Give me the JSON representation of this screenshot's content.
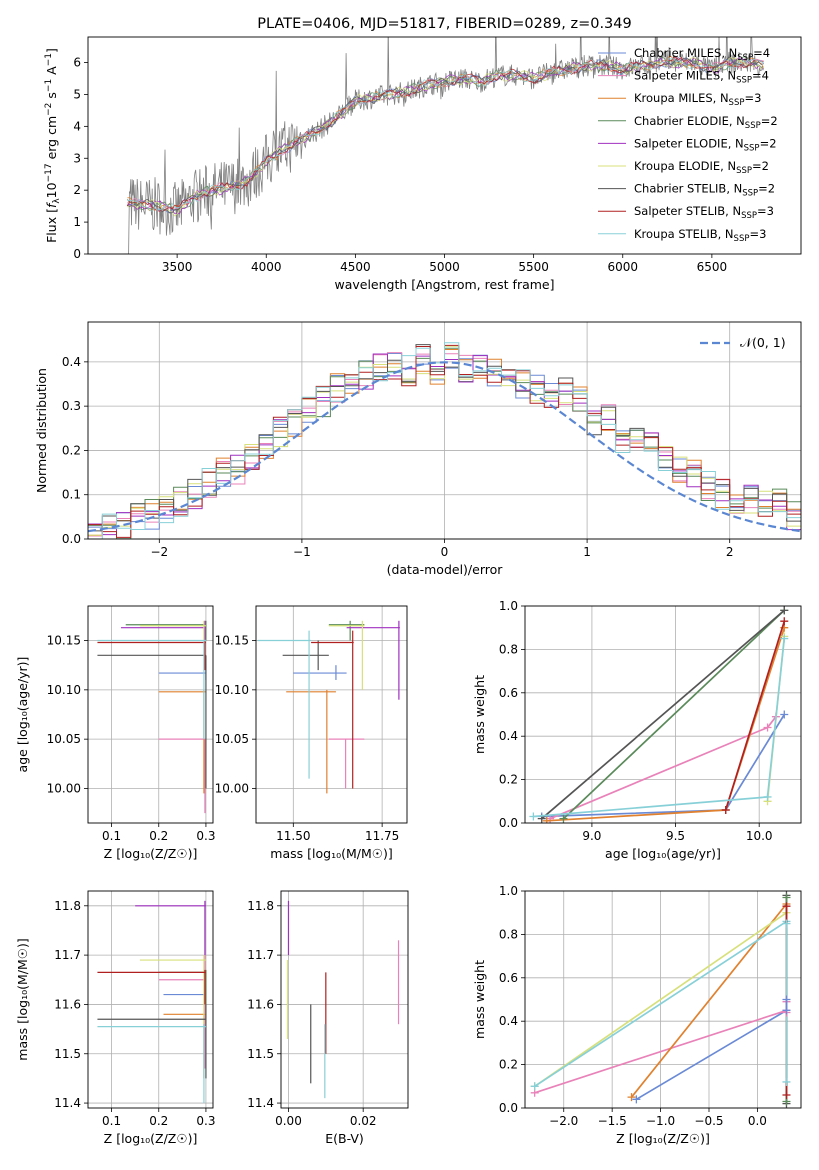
{
  "colors": {
    "chabrier_miles": "#6a8ad6",
    "salpeter_miles": "#e982b9",
    "kroupa_miles": "#e0812f",
    "chabrier_elodie": "#5a8a5a",
    "salpeter_elodie": "#a030c0",
    "kroupa_elodie": "#d7e07a",
    "chabrier_stelib": "#555555",
    "salpeter_stelib": "#b02020",
    "kroupa_stelib": "#88d0d8",
    "data": "#808080",
    "normal": "#5b87d2",
    "grid": "#b0b0b0"
  },
  "chart_data": [
    {
      "id": "spectrum",
      "type": "line",
      "title": "PLATE=0406, MJD=51817, FIBERID=0289, z=0.349",
      "xlabel": "wavelength [Angstrom, rest frame]",
      "ylabel_parts": [
        "Flux [",
        "f",
        "λ",
        "10",
        "−17",
        " erg cm",
        "−2",
        " s",
        "−1",
        " A",
        "−1",
        "]"
      ],
      "xlim": [
        3000,
        7000
      ],
      "ylim": [
        0,
        6.8
      ],
      "xticks": [
        3500,
        4000,
        4500,
        5000,
        5500,
        6000,
        6500
      ],
      "yticks": [
        0,
        1,
        2,
        3,
        4,
        5,
        6
      ],
      "grid": false,
      "legend_position": "top-right",
      "continuum": {
        "x": [
          3200,
          3300,
          3400,
          3500,
          3600,
          3700,
          3800,
          3900,
          4000,
          4100,
          4200,
          4300,
          4400,
          4500,
          4600,
          4700,
          4800,
          4900,
          5000,
          5100,
          5200,
          5300,
          5400,
          5500,
          5600,
          5700,
          5800,
          5900,
          6000,
          6100,
          6200,
          6300,
          6400,
          6500,
          6600,
          6700,
          6800
        ],
        "y": [
          1.6,
          1.55,
          1.5,
          1.35,
          1.8,
          2.0,
          2.1,
          2.3,
          2.9,
          3.3,
          3.6,
          3.9,
          4.3,
          4.8,
          4.9,
          5.0,
          5.1,
          5.3,
          5.4,
          5.5,
          5.4,
          5.6,
          5.6,
          5.5,
          5.7,
          5.8,
          5.9,
          5.9,
          5.8,
          5.9,
          6.0,
          6.0,
          6.0,
          5.8,
          6.0,
          6.0,
          5.9
        ]
      },
      "series": [
        {
          "name": "Chabrier MILES, N",
          "sub": "SSP",
          "suffix": "=4",
          "color_key": "chabrier_miles"
        },
        {
          "name": "Salpeter MILES, N",
          "sub": "SSP",
          "suffix": "=4",
          "color_key": "salpeter_miles"
        },
        {
          "name": "Kroupa MILES, N",
          "sub": "SSP",
          "suffix": "=3",
          "color_key": "kroupa_miles"
        },
        {
          "name": "Chabrier ELODIE, N",
          "sub": "SSP",
          "suffix": "=2",
          "color_key": "chabrier_elodie"
        },
        {
          "name": "Salpeter ELODIE, N",
          "sub": "SSP",
          "suffix": "=2",
          "color_key": "salpeter_elodie"
        },
        {
          "name": "Kroupa ELODIE, N",
          "sub": "SSP",
          "suffix": "=2",
          "color_key": "kroupa_elodie"
        },
        {
          "name": "Chabrier STELIB, N",
          "sub": "SSP",
          "suffix": "=2",
          "color_key": "chabrier_stelib"
        },
        {
          "name": "Salpeter STELIB, N",
          "sub": "SSP",
          "suffix": "=3",
          "color_key": "salpeter_stelib"
        },
        {
          "name": "Kroupa STELIB, N",
          "sub": "SSP",
          "suffix": "=3",
          "color_key": "kroupa_stelib"
        }
      ]
    },
    {
      "id": "residuals",
      "type": "bar",
      "xlabel": "(data-model)/error",
      "ylabel": "Normed distribution",
      "xlim": [
        -2.5,
        2.5
      ],
      "ylim": [
        0,
        0.49
      ],
      "xticks": [
        -2,
        -1,
        0,
        1,
        2
      ],
      "yticks": [
        0.0,
        0.1,
        0.2,
        0.3,
        0.4
      ],
      "grid": true,
      "bin_width": 0.1,
      "bin_start": -2.5,
      "legend_label": "𝒩(0, 1)",
      "legend_position": "top-right",
      "reference_values": [
        0.018,
        0.026,
        0.034,
        0.045,
        0.055,
        0.072,
        0.085,
        0.1,
        0.125,
        0.15,
        0.155,
        0.18,
        0.205,
        0.24,
        0.26,
        0.29,
        0.31,
        0.34,
        0.35,
        0.37,
        0.39,
        0.39,
        0.38,
        0.405,
        0.38,
        0.42,
        0.385,
        0.395,
        0.38,
        0.37,
        0.35,
        0.34,
        0.33,
        0.33,
        0.32,
        0.27,
        0.28,
        0.22,
        0.24,
        0.21,
        0.18,
        0.15,
        0.15,
        0.12,
        0.1,
        0.09,
        0.09,
        0.08,
        0.08,
        0.05
      ]
    },
    {
      "id": "age_vs_Z",
      "type": "scatter",
      "xlabel": "Z [log₁₀(Z/Z☉)]",
      "ylabel": "age  [log₁₀(age/yr)]",
      "xlim": [
        0.05,
        0.315
      ],
      "ylim": [
        9.965,
        10.185
      ],
      "xticks": [
        0.1,
        0.2,
        0.3
      ],
      "yticks": [
        10.0,
        10.05,
        10.1,
        10.15
      ],
      "grid": true,
      "points": [
        {
          "color_key": "chabrier_miles",
          "x": 0.3,
          "y": 10.117,
          "xerr": [
            0.2,
            0.3
          ],
          "yerr": [
            10.11,
            10.125
          ]
        },
        {
          "color_key": "salpeter_miles",
          "x": 0.3,
          "y": 10.05,
          "xerr": [
            0.2,
            0.3
          ],
          "yerr": [
            9.975,
            10.05
          ]
        },
        {
          "color_key": "kroupa_miles",
          "x": 0.3,
          "y": 10.098,
          "xerr": [
            0.2,
            0.3
          ],
          "yerr": [
            9.995,
            10.1
          ]
        },
        {
          "color_key": "chabrier_elodie",
          "x": 0.3,
          "y": 10.166,
          "xerr": [
            0.13,
            0.3
          ],
          "yerr": [
            10.15,
            10.17
          ]
        },
        {
          "color_key": "salpeter_elodie",
          "x": 0.3,
          "y": 10.163,
          "xerr": [
            0.12,
            0.3
          ],
          "yerr": [
            10.15,
            10.17
          ]
        },
        {
          "color_key": "kroupa_elodie",
          "x": 0.3,
          "y": 10.165,
          "xerr": [
            0.16,
            0.3
          ],
          "yerr": [
            10.15,
            10.17
          ]
        },
        {
          "color_key": "chabrier_stelib",
          "x": 0.3,
          "y": 10.135,
          "xerr": [
            0.07,
            0.3
          ],
          "yerr": [
            10.0,
            10.135
          ]
        },
        {
          "color_key": "salpeter_stelib",
          "x": 0.3,
          "y": 10.148,
          "xerr": [
            0.07,
            0.3
          ],
          "yerr": [
            10.12,
            10.15
          ]
        },
        {
          "color_key": "kroupa_stelib",
          "x": 0.3,
          "y": 10.15,
          "xerr": [
            0.07,
            0.3
          ],
          "yerr": [
            10.05,
            10.15
          ]
        }
      ]
    },
    {
      "id": "age_vs_mass",
      "type": "scatter",
      "xlabel": "mass [log₁₀(M/M☉)]",
      "ylabel": "",
      "xlim": [
        11.395,
        11.82
      ],
      "ylim": [
        9.965,
        10.185
      ],
      "xticks": [
        11.5,
        11.75
      ],
      "yticks": [
        10.0,
        10.05,
        10.1,
        10.15
      ],
      "grid": true,
      "points": [
        {
          "color_key": "chabrier_miles",
          "x": 11.62,
          "y": 10.117,
          "xerr": [
            11.5,
            11.65
          ],
          "yerr": [
            10.11,
            10.125
          ]
        },
        {
          "color_key": "salpeter_miles",
          "x": 11.65,
          "y": 10.05,
          "xerr": [
            11.6,
            11.7
          ],
          "yerr": [
            10.0,
            10.05
          ]
        },
        {
          "color_key": "kroupa_miles",
          "x": 11.6,
          "y": 10.098,
          "xerr": [
            11.48,
            11.62
          ],
          "yerr": [
            9.995,
            10.1
          ]
        },
        {
          "color_key": "chabrier_elodie",
          "x": 11.66,
          "y": 10.166,
          "xerr": [
            11.6,
            11.7
          ],
          "yerr": [
            10.15,
            10.17
          ]
        },
        {
          "color_key": "salpeter_elodie",
          "x": 11.8,
          "y": 10.163,
          "xerr": [
            11.65,
            11.8
          ],
          "yerr": [
            10.09,
            10.17
          ]
        },
        {
          "color_key": "kroupa_elodie",
          "x": 11.7,
          "y": 10.165,
          "xerr": [
            11.6,
            11.7
          ],
          "yerr": [
            10.1,
            10.17
          ]
        },
        {
          "color_key": "chabrier_stelib",
          "x": 11.57,
          "y": 10.135,
          "xerr": [
            11.47,
            11.6
          ],
          "yerr": [
            10.12,
            10.15
          ]
        },
        {
          "color_key": "salpeter_stelib",
          "x": 11.67,
          "y": 10.148,
          "xerr": [
            11.55,
            11.67
          ],
          "yerr": [
            10.0,
            10.16
          ]
        },
        {
          "color_key": "kroupa_stelib",
          "x": 11.55,
          "y": 10.15,
          "xerr": [
            11.4,
            11.55
          ],
          "yerr": [
            10.01,
            10.16
          ]
        }
      ]
    },
    {
      "id": "weight_vs_age",
      "type": "line",
      "xlabel": "age  [log₁₀(age/yr)]",
      "ylabel": "mass weight",
      "xlim": [
        8.6,
        10.25
      ],
      "ylim": [
        0.0,
        1.0
      ],
      "xticks": [
        9.0,
        9.5,
        10.0
      ],
      "yticks": [
        0.0,
        0.2,
        0.4,
        0.6,
        0.8,
        1.0
      ],
      "grid": true,
      "series": [
        {
          "color_key": "chabrier_miles",
          "x": [
            8.7,
            9.8,
            10.15
          ],
          "y": [
            0.03,
            0.06,
            0.5
          ]
        },
        {
          "color_key": "salpeter_miles",
          "x": [
            8.75,
            10.05,
            10.1
          ],
          "y": [
            0.02,
            0.44,
            0.49
          ]
        },
        {
          "color_key": "kroupa_miles",
          "x": [
            8.73,
            9.8,
            10.15
          ],
          "y": [
            0.01,
            0.06,
            0.9
          ]
        },
        {
          "color_key": "chabrier_elodie",
          "x": [
            8.83,
            10.15
          ],
          "y": [
            0.02,
            0.98
          ]
        },
        {
          "color_key": "kroupa_elodie",
          "x": [
            10.05,
            10.15
          ],
          "y": [
            0.1,
            0.86
          ]
        },
        {
          "color_key": "chabrier_stelib",
          "x": [
            8.7,
            10.15
          ],
          "y": [
            0.02,
            0.98
          ]
        },
        {
          "color_key": "salpeter_stelib",
          "x": [
            9.8,
            10.15
          ],
          "y": [
            0.06,
            0.93
          ]
        },
        {
          "color_key": "kroupa_stelib",
          "x": [
            8.65,
            10.05,
            10.15
          ],
          "y": [
            0.03,
            0.12,
            0.85
          ]
        }
      ]
    },
    {
      "id": "mass_vs_Z",
      "type": "scatter",
      "xlabel": "Z [log₁₀(Z/Z☉)]",
      "ylabel": "mass [log₁₀(M/M☉)]",
      "xlim": [
        0.05,
        0.315
      ],
      "ylim": [
        11.39,
        11.83
      ],
      "xticks": [
        0.1,
        0.2,
        0.3
      ],
      "yticks": [
        11.4,
        11.5,
        11.6,
        11.7,
        11.8
      ],
      "grid": true,
      "points": [
        {
          "color_key": "chabrier_miles",
          "x": 0.3,
          "y": 11.62,
          "xerr": [
            0.21,
            0.3
          ],
          "yerr": [
            11.6,
            11.64
          ]
        },
        {
          "color_key": "salpeter_miles",
          "x": 0.3,
          "y": 11.65,
          "xerr": [
            0.2,
            0.3
          ],
          "yerr": [
            11.47,
            11.7
          ]
        },
        {
          "color_key": "kroupa_miles",
          "x": 0.3,
          "y": 11.58,
          "xerr": [
            0.21,
            0.3
          ],
          "yerr": [
            11.45,
            11.58
          ]
        },
        {
          "color_key": "chabrier_elodie",
          "x": 0.3,
          "y": 11.665,
          "xerr": [
            0.2,
            0.3
          ],
          "yerr": [
            11.6,
            11.67
          ]
        },
        {
          "color_key": "salpeter_elodie",
          "x": 0.3,
          "y": 11.8,
          "xerr": [
            0.15,
            0.3
          ],
          "yerr": [
            11.7,
            11.81
          ]
        },
        {
          "color_key": "kroupa_elodie",
          "x": 0.3,
          "y": 11.69,
          "xerr": [
            0.16,
            0.3
          ],
          "yerr": [
            11.55,
            11.7
          ]
        },
        {
          "color_key": "chabrier_stelib",
          "x": 0.3,
          "y": 11.57,
          "xerr": [
            0.07,
            0.3
          ],
          "yerr": [
            11.45,
            11.6
          ]
        },
        {
          "color_key": "salpeter_stelib",
          "x": 0.3,
          "y": 11.665,
          "xerr": [
            0.07,
            0.3
          ],
          "yerr": [
            11.6,
            11.67
          ]
        },
        {
          "color_key": "kroupa_stelib",
          "x": 0.3,
          "y": 11.555,
          "xerr": [
            0.07,
            0.3
          ],
          "yerr": [
            11.4,
            11.56
          ]
        }
      ]
    },
    {
      "id": "mass_vs_ebv",
      "type": "scatter",
      "xlabel": "E(B-V)",
      "ylabel": "",
      "xlim": [
        -0.002,
        0.032
      ],
      "ylim": [
        11.39,
        11.83
      ],
      "xticks": [
        0.0,
        0.02
      ],
      "yticks": [
        11.4,
        11.5,
        11.6,
        11.7,
        11.8
      ],
      "grid": true,
      "points": [
        {
          "color_key": "salpeter_elodie",
          "x": 0.0,
          "y": 11.8,
          "xerr": [
            0.0,
            0.0
          ],
          "yerr": [
            11.7,
            11.81
          ]
        },
        {
          "color_key": "kroupa_elodie",
          "x": 0.0,
          "y": 11.6,
          "xerr": [
            0.0,
            0.0
          ],
          "yerr": [
            11.53,
            11.69
          ]
        },
        {
          "color_key": "chabrier_stelib",
          "x": 0.0065,
          "y": 11.52,
          "xerr": [
            0.0065,
            0.0065
          ],
          "yerr": [
            11.44,
            11.6
          ]
        },
        {
          "color_key": "salpeter_stelib",
          "x": 0.01,
          "y": 11.58,
          "xerr": [
            0.01,
            0.01
          ],
          "yerr": [
            11.5,
            11.665
          ]
        },
        {
          "color_key": "kroupa_stelib",
          "x": 0.01,
          "y": 11.47,
          "xerr": [
            0.01,
            0.01
          ],
          "yerr": [
            11.41,
            11.56
          ]
        },
        {
          "color_key": "salpeter_miles",
          "x": 0.03,
          "y": 11.64,
          "xerr": [
            0.03,
            0.03
          ],
          "yerr": [
            11.56,
            11.73
          ]
        }
      ]
    },
    {
      "id": "weight_vs_Z",
      "type": "line",
      "xlabel": "Z [log₁₀(Z/Z☉)]",
      "ylabel": "mass weight",
      "xlim": [
        -2.4,
        0.45
      ],
      "ylim": [
        0.0,
        1.0
      ],
      "xticks": [
        -2.0,
        -1.5,
        -1.0,
        -0.5,
        0.0
      ],
      "yticks": [
        0.0,
        0.2,
        0.4,
        0.6,
        0.8,
        1.0
      ],
      "grid": true,
      "series": [
        {
          "color_key": "chabrier_miles",
          "x": [
            -1.25,
            0.3
          ],
          "y": [
            0.04,
            0.45
          ]
        },
        {
          "color_key": "salpeter_miles",
          "x": [
            -2.3,
            0.3
          ],
          "y": [
            0.07,
            0.45
          ]
        },
        {
          "color_key": "kroupa_miles",
          "x": [
            -1.3,
            0.3
          ],
          "y": [
            0.05,
            0.94
          ]
        },
        {
          "color_key": "kroupa_elodie",
          "x": [
            -2.3,
            0.3
          ],
          "y": [
            0.1,
            0.9
          ]
        },
        {
          "color_key": "kroupa_stelib",
          "x": [
            -2.3,
            0.3
          ],
          "y": [
            0.1,
            0.86
          ]
        }
      ],
      "right_markers": [
        {
          "color_key": "chabrier_stelib",
          "y": [
            0.98,
            0.02
          ]
        },
        {
          "color_key": "chabrier_elodie",
          "y": [
            0.97,
            0.03
          ]
        },
        {
          "color_key": "salpeter_stelib",
          "y": [
            0.93,
            0.06
          ]
        },
        {
          "color_key": "kroupa_stelib",
          "y": [
            0.85,
            0.12
          ]
        },
        {
          "color_key": "salpeter_miles",
          "y": [
            0.49,
            0.44
          ]
        },
        {
          "color_key": "chabrier_miles",
          "y": [
            0.5,
            0.45
          ]
        }
      ]
    }
  ]
}
